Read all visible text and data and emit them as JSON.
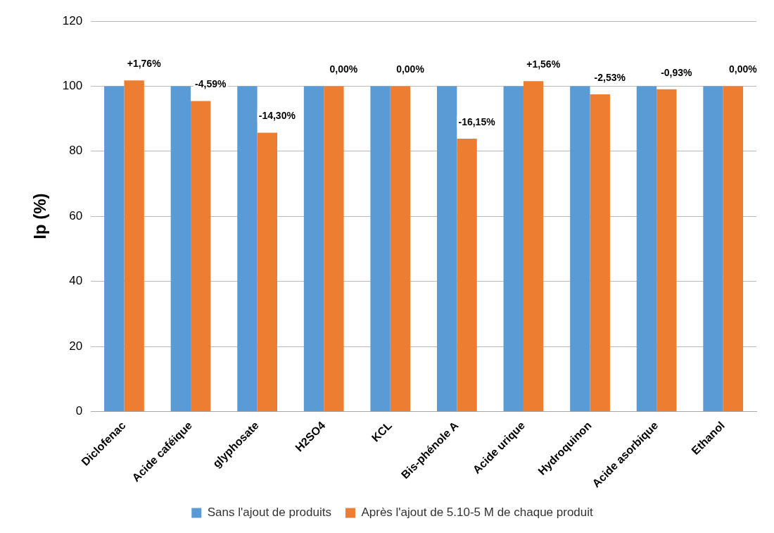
{
  "chart_data": {
    "type": "bar",
    "ylabel": "Ip (%)",
    "categories": [
      "Diclofenac",
      "Acide caféique",
      "glyphosate",
      "H2SO4",
      "KCL",
      "Bis-phénole A",
      "Acide urique",
      "Hydroquinon",
      "Acide asorbique",
      "Ethanol"
    ],
    "series": [
      {
        "name": "Sans l'ajout de produits",
        "color": "#5b9bd5",
        "values": [
          100,
          100,
          100,
          100,
          100,
          100,
          100,
          100,
          100,
          100
        ]
      },
      {
        "name": "Après l'ajout de 5.10-5 M de chaque produit",
        "color": "#ed7d31",
        "values": [
          101.76,
          95.41,
          85.7,
          100,
          100,
          83.85,
          101.56,
          97.47,
          99.07,
          100
        ]
      }
    ],
    "annotations": [
      {
        "text": "+1,76%",
        "x": "Diclofenac",
        "y": 101.76
      },
      {
        "text": "-4,59%",
        "x": "Acide caféique",
        "y": 95.41
      },
      {
        "text": "-14,30%",
        "x": "glyphosate",
        "y": 85.7
      },
      {
        "text": "0,00%",
        "x": "H2SO4",
        "y": 100
      },
      {
        "text": "0,00%",
        "x": "KCL",
        "y": 100
      },
      {
        "text": "-16,15%",
        "x": "Bis-phénole A",
        "y": 83.85
      },
      {
        "text": "+1,56%",
        "x": "Acide urique",
        "y": 101.56
      },
      {
        "text": "-2,53%",
        "x": "Hydroquinon",
        "y": 97.47
      },
      {
        "text": "-0,93%",
        "x": "Acide asorbique",
        "y": 99.07
      },
      {
        "text": "0,00%",
        "x": "Ethanol",
        "y": 100
      }
    ],
    "ylim": [
      0,
      120
    ],
    "yticks": [
      0,
      20,
      40,
      60,
      80,
      100,
      120
    ],
    "grid": "y",
    "legend": "bottom"
  }
}
